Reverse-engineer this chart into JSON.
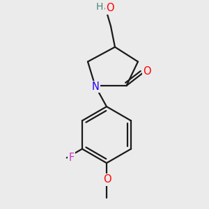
{
  "bg_color": "#ebebeb",
  "bond_color": "#1a1a1a",
  "bond_width": 1.6,
  "colors": {
    "O": "#ff0000",
    "N": "#2200ee",
    "F": "#cc33cc",
    "H": "#448877"
  },
  "font_size": 10.5,
  "fig_size": [
    3.0,
    3.0
  ],
  "dpi": 100
}
